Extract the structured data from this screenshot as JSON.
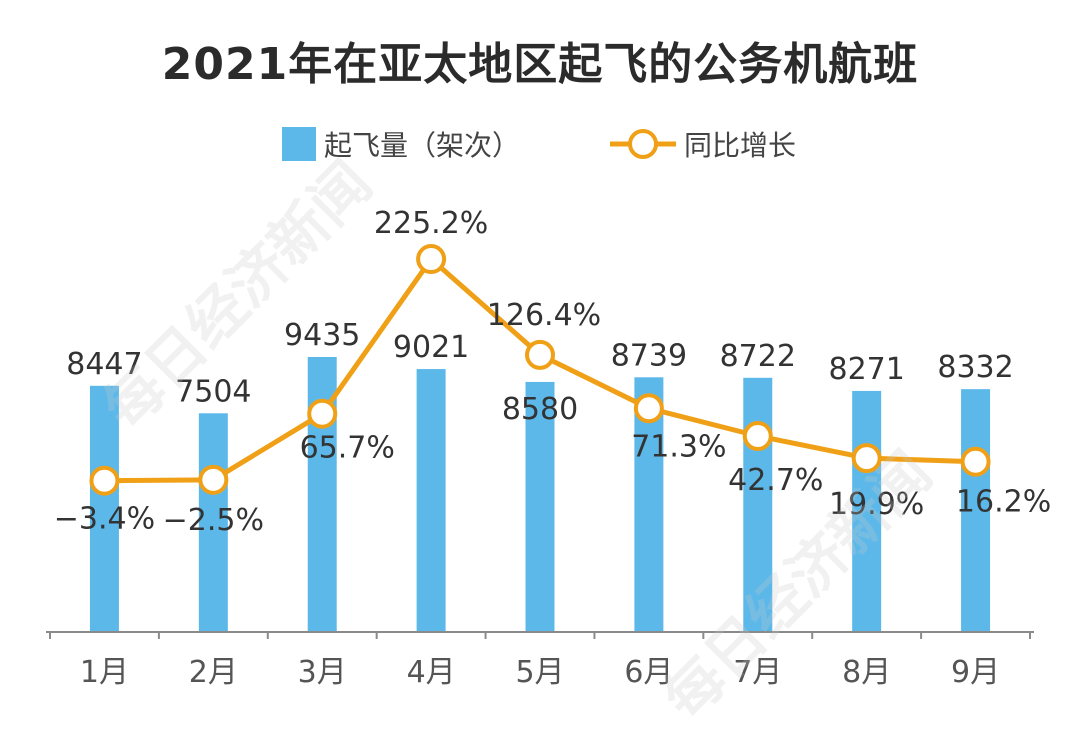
{
  "chart_data": {
    "type": "bar",
    "title": "2021年在亚太地区起飞的公务机航班",
    "categories": [
      "1月",
      "2月",
      "3月",
      "4月",
      "5月",
      "6月",
      "7月",
      "8月",
      "9月"
    ],
    "series": [
      {
        "name": "起飞量（架次）",
        "type": "bar",
        "values": [
          8447,
          7504,
          9435,
          9021,
          8580,
          8739,
          8722,
          8271,
          8332
        ],
        "labels": [
          "8447",
          "7504",
          "9435",
          "9021",
          "8580",
          "8739",
          "8722",
          "8271",
          "8332"
        ],
        "color": "#5db8ea"
      },
      {
        "name": "同比增长",
        "type": "line",
        "values": [
          -3.4,
          -2.5,
          65.7,
          225.2,
          126.4,
          71.3,
          42.7,
          19.9,
          16.2
        ],
        "labels": [
          "−3.4%",
          "−2.5%",
          "65.7%",
          "225.2%",
          "126.4%",
          "71.3%",
          "42.7%",
          "19.9%",
          "16.2%"
        ],
        "color": "#f0a016"
      }
    ],
    "legend_position": "top-center",
    "grid": false
  },
  "legend": {
    "bar_label": "起飞量（架次）",
    "line_label": "同比增长"
  },
  "watermark": "每日经济新闻"
}
